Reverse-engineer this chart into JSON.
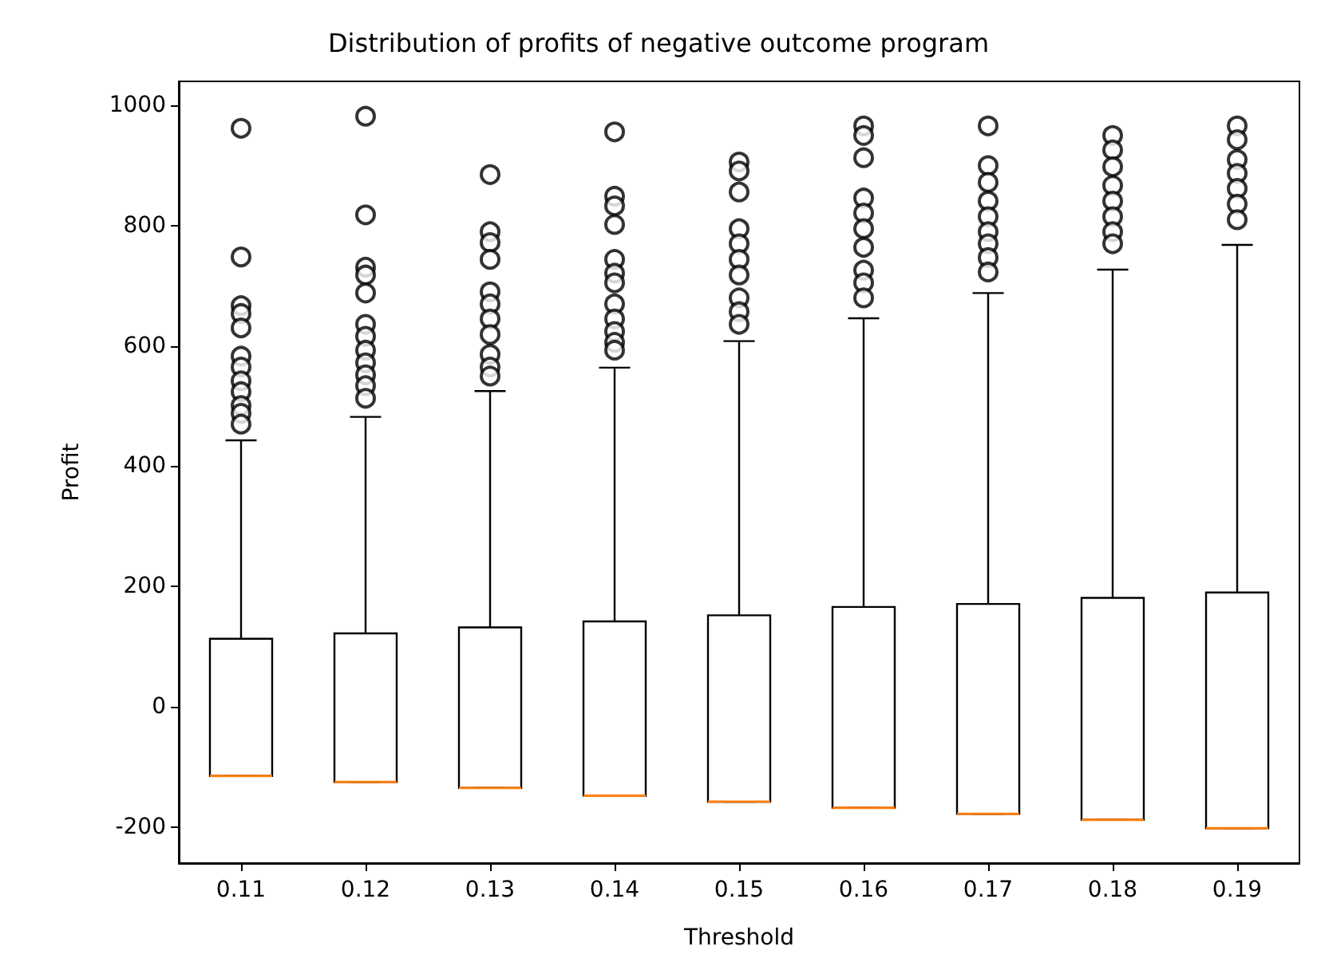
{
  "chart_data": {
    "type": "box",
    "title": "Distribution of profits of negative outcome program",
    "xlabel": "Threshold",
    "ylabel": "Profit",
    "categories": [
      "0.11",
      "0.12",
      "0.13",
      "0.14",
      "0.15",
      "0.16",
      "0.17",
      "0.18",
      "0.19"
    ],
    "ylim": [
      -260,
      1040
    ],
    "yticks": [
      -200,
      0,
      200,
      400,
      600,
      800,
      1000
    ],
    "grid": false,
    "marker": "circle",
    "series": [
      {
        "color": "#000000",
        "boxes": [
          {
            "low": -115,
            "q1": -115,
            "median": -115,
            "q3": 113,
            "high": 443,
            "outliers": [
              962,
              748,
              667,
              654,
              630,
              583,
              565,
              542,
              524,
              501,
              488,
              470
            ]
          },
          {
            "low": -125,
            "q1": -125,
            "median": -125,
            "q3": 122,
            "high": 482,
            "outliers": [
              982,
              818,
              731,
              718,
              688,
              636,
              616,
              593,
              572,
              552,
              534,
              513
            ]
          },
          {
            "low": -135,
            "q1": -135,
            "median": -135,
            "q3": 132,
            "high": 525,
            "outliers": [
              885,
              790,
              772,
              744,
              690,
              670,
              645,
              619,
              586,
              565,
              550
            ]
          },
          {
            "low": -148,
            "q1": -148,
            "median": -148,
            "q3": 142,
            "high": 564,
            "outliers": [
              956,
              849,
              833,
              802,
              744,
              721,
              705,
              670,
              645,
              624,
              606,
              593
            ]
          },
          {
            "low": -158,
            "q1": -158,
            "median": -158,
            "q3": 152,
            "high": 608,
            "outliers": [
              906,
              891,
              856,
              795,
              770,
              744,
              718,
              680,
              657,
              636
            ]
          },
          {
            "low": -168,
            "q1": -168,
            "median": -168,
            "q3": 166,
            "high": 646,
            "outliers": [
              966,
              950,
              913,
              846,
              821,
              795,
              764,
              726,
              705,
              680
            ]
          },
          {
            "low": -178,
            "q1": -178,
            "median": -178,
            "q3": 171,
            "high": 688,
            "outliers": [
              966,
              900,
              872,
              841,
              815,
              790,
              770,
              747,
              723
            ]
          },
          {
            "low": -188,
            "q1": -188,
            "median": -188,
            "q3": 181,
            "high": 727,
            "outliers": [
              950,
              926,
              898,
              867,
              841,
              815,
              790,
              770
            ]
          },
          {
            "low": -202,
            "q1": -202,
            "median": -202,
            "q3": 190,
            "high": 768,
            "outliers": [
              966,
              943,
              910,
              887,
              862,
              836,
              810
            ]
          }
        ]
      }
    ]
  }
}
